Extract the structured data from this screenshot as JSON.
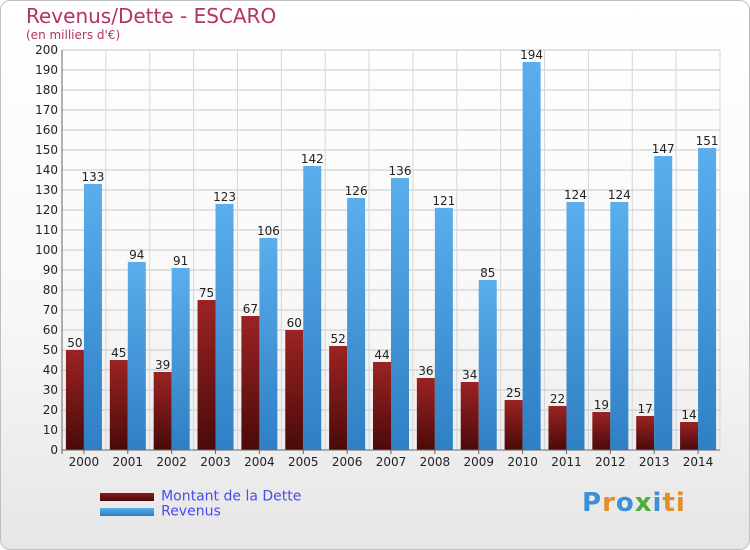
{
  "chart_data": {
    "type": "bar",
    "title": "Revenus/Dette - ESCARO",
    "subtitle": "(en milliers d'€)",
    "categories": [
      "2000",
      "2001",
      "2002",
      "2003",
      "2004",
      "2005",
      "2006",
      "2007",
      "2008",
      "2009",
      "2010",
      "2011",
      "2012",
      "2013",
      "2014"
    ],
    "series": [
      {
        "name": "Montant de la Dette",
        "color": "#8a1a1a",
        "values": [
          50,
          45,
          39,
          75,
          67,
          60,
          52,
          44,
          36,
          34,
          25,
          22,
          19,
          17,
          14
        ]
      },
      {
        "name": "Revenus",
        "color": "#4a9fe2",
        "values": [
          133,
          94,
          91,
          123,
          106,
          142,
          126,
          136,
          121,
          85,
          194,
          124,
          124,
          147,
          151
        ]
      }
    ],
    "ylim": [
      0,
      200
    ],
    "ytick_step": 10,
    "grid": true,
    "legend_position": "bottom-left"
  },
  "logo_text": "Proxiti"
}
